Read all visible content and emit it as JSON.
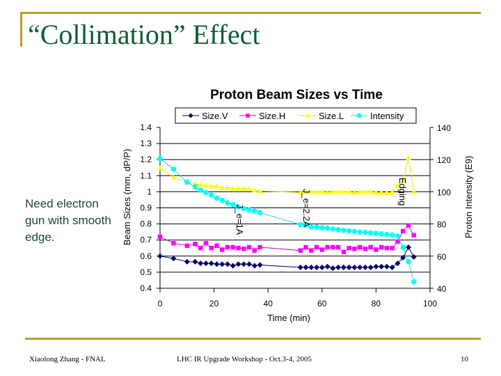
{
  "slide": {
    "title": "“Collimation” Effect",
    "note": "Need electron gun with smooth edge.",
    "footer_left": "Xiaolong Zhang - FNAL",
    "footer_center": "LHC IR Upgrade Workshop - Oct.3-4, 2005",
    "page_number": "10",
    "accent_color": "#c09a2a"
  },
  "chart_data": {
    "type": "line",
    "title": "Proton Beam Sizes vs Time",
    "xlabel": "Time (min)",
    "ylabel": "Beam Sizes (mm, dP/P)",
    "ylabel_right": "Proton Intensity (E9)",
    "xlim": [
      0,
      100
    ],
    "ylim": [
      0.4,
      1.4
    ],
    "ylim_right": [
      40,
      140
    ],
    "x_ticks": [
      "0",
      "20",
      "40",
      "60",
      "80",
      "100"
    ],
    "y_ticks": [
      "0.4",
      "0.5",
      "0.6",
      "0.7",
      "0.8",
      "0.9",
      "1",
      "1.1",
      "1.2",
      "1.3",
      "1.4"
    ],
    "y_ticks_right": [
      "40",
      "60",
      "80",
      "100",
      "120",
      "140"
    ],
    "grid": true,
    "legend_position": "top",
    "x": [
      0,
      5,
      10,
      13,
      15,
      17,
      19,
      21,
      23,
      25,
      27,
      29,
      31,
      33,
      35,
      37,
      52,
      54,
      56,
      58,
      60,
      62,
      64,
      66,
      68,
      70,
      72,
      74,
      76,
      78,
      80,
      82,
      84,
      86,
      88,
      90,
      92,
      94
    ],
    "series": [
      {
        "name": "Size.V",
        "axis": "left",
        "color": "#000066",
        "marker": "diamond",
        "values": [
          0.6,
          0.585,
          0.565,
          0.565,
          0.555,
          0.555,
          0.555,
          0.55,
          0.55,
          0.55,
          0.54,
          0.55,
          0.55,
          0.55,
          0.54,
          0.545,
          0.53,
          0.53,
          0.53,
          0.53,
          0.53,
          0.535,
          0.525,
          0.53,
          0.53,
          0.53,
          0.53,
          0.53,
          0.53,
          0.53,
          0.535,
          0.535,
          0.535,
          0.53,
          0.555,
          0.59,
          0.655,
          0.595
        ]
      },
      {
        "name": "Size.H",
        "axis": "left",
        "color": "#ff00ff",
        "marker": "square",
        "values": [
          0.72,
          0.68,
          0.665,
          0.675,
          0.65,
          0.68,
          0.65,
          0.665,
          0.64,
          0.655,
          0.655,
          0.65,
          0.645,
          0.655,
          0.635,
          0.655,
          0.635,
          0.655,
          0.635,
          0.655,
          0.64,
          0.655,
          0.655,
          0.655,
          0.625,
          0.65,
          0.645,
          0.655,
          0.645,
          0.655,
          0.64,
          0.655,
          0.65,
          0.65,
          0.69,
          0.755,
          0.79,
          0.73
        ]
      },
      {
        "name": "Size.L",
        "axis": "left",
        "color": "#ffff00",
        "marker": "triangle",
        "values": [
          1.145,
          1.09,
          1.06,
          1.05,
          1.045,
          1.04,
          1.035,
          1.035,
          1.025,
          1.025,
          1.02,
          1.02,
          1.02,
          1.02,
          1.01,
          1.005,
          0.995,
          1.0,
          1.0,
          1.0,
          1.0,
          0.995,
          1.0,
          1.0,
          1.0,
          1.0,
          0.995,
          1.0,
          1.0,
          1.0,
          0.995,
          0.995,
          0.995,
          0.995,
          1.04,
          1.07,
          1.21,
          1.0
        ]
      },
      {
        "name": "Intensity",
        "axis": "right",
        "color": "#00ffff",
        "marker": "circle",
        "values": [
          120.6,
          114,
          106,
          103,
          101,
          99.5,
          98,
          96,
          94.7,
          93,
          92,
          90.6,
          89.5,
          88.6,
          88,
          87,
          79.6,
          79.3,
          78,
          78,
          77.6,
          77.4,
          76.8,
          76.4,
          76,
          75.7,
          75.4,
          75,
          74.8,
          74.4,
          74.1,
          73.8,
          73.4,
          73.1,
          72.5,
          65.3,
          56.5,
          44
        ]
      }
    ],
    "annotations": [
      "J_e=1A",
      "J_e=2.2A",
      "Edging"
    ]
  }
}
